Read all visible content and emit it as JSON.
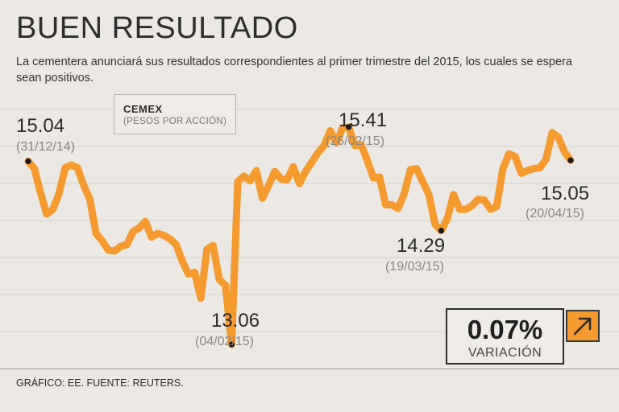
{
  "header": {
    "title": "BUEN RESULTADO",
    "subtitle": "La cementera anunciará sus resultados correspondientes al primer trimestre del 2015, los cuales se espera sean positivos."
  },
  "legend": {
    "company": "CEMEX",
    "units": "(PESOS POR ACCIÓN)"
  },
  "chart_data": {
    "type": "line",
    "title": "CEMEX (PESOS POR ACCIÓN)",
    "xlabel": "",
    "ylabel": "",
    "ylim": [
      12.8,
      15.8
    ],
    "grid": true,
    "series": [
      {
        "name": "CEMEX",
        "color": "#f49a2e",
        "values": [
          15.04,
          14.96,
          14.7,
          14.47,
          14.52,
          14.69,
          14.97,
          15.0,
          14.97,
          14.78,
          14.63,
          14.26,
          14.18,
          14.08,
          14.07,
          14.12,
          14.14,
          14.28,
          14.32,
          14.39,
          14.22,
          14.26,
          14.24,
          14.2,
          14.14,
          13.96,
          13.82,
          13.84,
          13.56,
          14.09,
          14.13,
          13.76,
          13.7,
          13.06,
          14.82,
          14.88,
          14.83,
          14.94,
          14.64,
          14.78,
          14.93,
          14.85,
          14.84,
          14.98,
          14.8,
          14.93,
          15.03,
          15.13,
          15.21,
          15.37,
          15.24,
          15.4,
          15.41,
          15.21,
          15.22,
          15.05,
          14.86,
          14.87,
          14.57,
          14.57,
          14.53,
          14.69,
          14.95,
          14.96,
          14.82,
          14.68,
          14.36,
          14.29,
          14.42,
          14.68,
          14.52,
          14.52,
          14.56,
          14.63,
          14.62,
          14.52,
          14.55,
          14.96,
          15.12,
          15.09,
          14.91,
          14.94,
          14.96,
          14.97,
          15.06,
          15.35,
          15.3,
          15.14,
          15.05
        ]
      }
    ],
    "annotations": [
      {
        "index": 0,
        "value": "15.04",
        "date": "(31/12/14)"
      },
      {
        "index": 33,
        "value": "13.06",
        "date": "(04/02/15)"
      },
      {
        "index": 52,
        "value": "15.41",
        "date": "(26/02/15)"
      },
      {
        "index": 67,
        "value": "14.29",
        "date": "(19/03/15)"
      },
      {
        "index": 88,
        "value": "15.05",
        "date": "(20/04/15)"
      }
    ]
  },
  "variation": {
    "value": "0.07%",
    "label": "VARIACIÓN",
    "icon": "arrow-up-right-icon"
  },
  "footer": {
    "source": "GRÁFICO: EE. FUENTE: REUTERS."
  }
}
